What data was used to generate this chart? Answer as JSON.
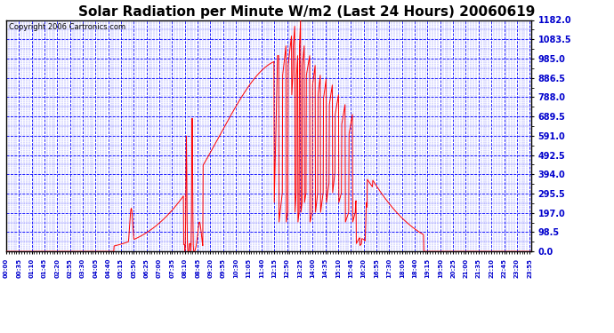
{
  "title": "Solar Radiation per Minute W/m2 (Last 24 Hours) 20060619",
  "copyright": "Copyright 2006 Cartronics.com",
  "bg_color": "#ffffff",
  "plot_bg_color": "#ffffff",
  "line_color": "#ff0000",
  "grid_color": "#0000ff",
  "text_color": "#0000cd",
  "title_color": "#000000",
  "yticks": [
    0.0,
    98.5,
    197.0,
    295.5,
    394.0,
    492.5,
    591.0,
    689.5,
    788.0,
    886.5,
    985.0,
    1083.5,
    1182.0
  ],
  "ymax": 1182.0,
  "ymin": 0.0,
  "title_fontsize": 11,
  "copyright_fontsize": 6,
  "tick_fontsize": 7,
  "xtick_fontsize": 5
}
